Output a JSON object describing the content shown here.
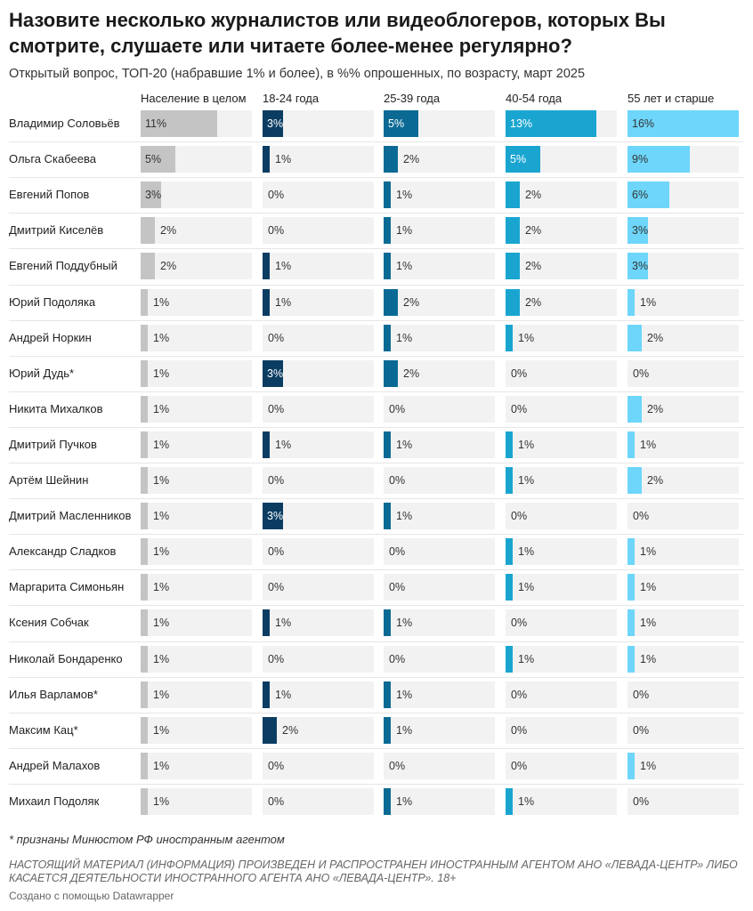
{
  "title": "Назовите несколько журналистов или видеоблогеров, которых Вы смотрите, слушаете или читаете более-менее регулярно?",
  "subtitle": "Открытый вопрос, ТОП-20 (набравшие 1% и более), в %% опрошенных, по возрасту, март 2025",
  "footnote": "* признаны Минюстом РФ иностранным агентом",
  "disclaimer": "НАСТОЯЩИЙ МАТЕРИАЛ (ИНФОРМАЦИЯ) ПРОИЗВЕДЕН И РАСПРОСТРАНЕН ИНОСТРАННЫМ АГЕНТОМ АНО «ЛЕВАДА-ЦЕНТР» ЛИБО КАСАЕТСЯ ДЕЯТЕЛЬНОСТИ ИНОСТРАННОГО АГЕНТА АНО «ЛЕВАДА-ЦЕНТР». 18+",
  "credit": "Создано с помощью Datawrapper",
  "chart_data": {
    "type": "bar",
    "value_suffix": "%",
    "xlim": [
      0,
      16
    ],
    "categories": [
      "Владимир Соловьёв",
      "Ольга Скабеева",
      "Евгений Попов",
      "Дмитрий Киселёв",
      "Евгений Поддубный",
      "Юрий Подоляка",
      "Андрей Норкин",
      "Юрий Дудь*",
      "Никита Михалков",
      "Дмитрий Пучков",
      "Артём Шейнин",
      "Дмитрий Масленников",
      "Александр Сладков",
      "Маргарита Симоньян",
      "Ксения Собчак",
      "Николай Бондаренко",
      "Илья Варламов*",
      "Максим Кац*",
      "Андрей Малахов",
      "Михаил Подоляк"
    ],
    "series": [
      {
        "name": "Население в целом",
        "color": "#c4c4c4",
        "values": [
          11,
          5,
          3,
          2,
          2,
          1,
          1,
          1,
          1,
          1,
          1,
          1,
          1,
          1,
          1,
          1,
          1,
          1,
          1,
          1
        ]
      },
      {
        "name": "18-24 года",
        "color": "#0b3d63",
        "values": [
          3,
          1,
          0,
          0,
          1,
          1,
          0,
          3,
          0,
          1,
          0,
          3,
          0,
          0,
          1,
          0,
          1,
          2,
          0,
          0
        ]
      },
      {
        "name": "25-39 года",
        "color": "#0a6a94",
        "values": [
          5,
          2,
          1,
          1,
          1,
          2,
          1,
          2,
          0,
          1,
          0,
          1,
          0,
          0,
          1,
          0,
          1,
          1,
          0,
          1
        ]
      },
      {
        "name": "40-54 года",
        "color": "#1aa5d1",
        "values": [
          13,
          5,
          2,
          2,
          2,
          2,
          1,
          0,
          0,
          1,
          1,
          0,
          1,
          1,
          0,
          1,
          0,
          0,
          0,
          1
        ]
      },
      {
        "name": "55 лет и старше",
        "color": "#6dd6fa",
        "values": [
          16,
          9,
          6,
          3,
          3,
          1,
          2,
          0,
          2,
          1,
          2,
          0,
          1,
          1,
          1,
          1,
          0,
          0,
          1,
          0
        ]
      }
    ]
  }
}
